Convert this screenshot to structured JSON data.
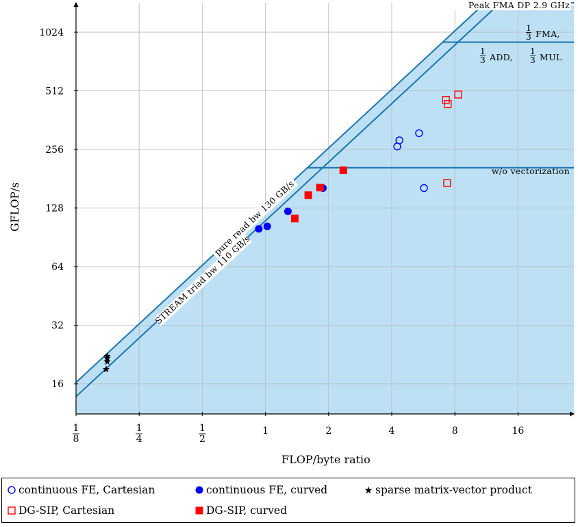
{
  "chart_data": {
    "type": "scatter",
    "xscale": "log2",
    "yscale": "log2",
    "xlim": [
      0.125,
      28
    ],
    "ylim": [
      12,
      1600
    ],
    "xlabel": "FLOP/byte ratio",
    "ylabel": "GFLOP/s",
    "x_ticks": [
      {
        "value": 0.125,
        "num": "1",
        "den": "8"
      },
      {
        "value": 0.25,
        "num": "1",
        "den": "4"
      },
      {
        "value": 0.5,
        "num": "1",
        "den": "2"
      },
      {
        "value": 1,
        "label": "1"
      },
      {
        "value": 2,
        "label": "2"
      },
      {
        "value": 4,
        "label": "4"
      },
      {
        "value": 8,
        "label": "8"
      },
      {
        "value": 16,
        "label": "16"
      }
    ],
    "y_ticks": [
      {
        "value": 16,
        "label": "16"
      },
      {
        "value": 32,
        "label": "32"
      },
      {
        "value": 64,
        "label": "64"
      },
      {
        "value": 128,
        "label": "128"
      },
      {
        "value": 256,
        "label": "256"
      },
      {
        "value": 512,
        "label": "512"
      },
      {
        "value": 1024,
        "label": "1024"
      }
    ],
    "grid": true,
    "roofline": {
      "peak_gflops": 1450,
      "fill_color": "#bde0f4",
      "line_color": "#1a74ad",
      "read_bw": 130,
      "triad_bw": 110,
      "ceil_third_fma": 910,
      "ceil_no_vector": 206,
      "labels": {
        "peak": "Peak FMA DP 2.9 GHz",
        "third_fma_frac": {
          "num": "1",
          "den": "3"
        },
        "third_fma_text": "FMA,",
        "add_mul_frac": {
          "num": "1",
          "den": "3"
        },
        "add_text": "ADD,",
        "mul_text": "MUL",
        "no_vector": "w/o vectorization",
        "read_bw": "pure read bw 130 GB/s",
        "triad_bw": "STREAM triad bw 110 GB/s"
      }
    },
    "series": [
      {
        "name": "continuous FE, Cartesian",
        "marker": "circle-open",
        "color": "#0000ff",
        "points": [
          [
            4.35,
            285
          ],
          [
            4.25,
            265
          ],
          [
            5.4,
            310
          ],
          [
            5.7,
            162
          ]
        ]
      },
      {
        "name": "continuous FE, curved",
        "marker": "circle-filled",
        "color": "#0000ff",
        "points": [
          [
            0.93,
            100
          ],
          [
            1.02,
            103
          ],
          [
            1.28,
            123
          ],
          [
            1.88,
            162
          ]
        ]
      },
      {
        "name": "sparse matrix-vector product",
        "marker": "star",
        "color": "#000000",
        "points": [
          [
            0.176,
            21.7
          ],
          [
            0.176,
            20.8
          ],
          [
            0.174,
            19.0
          ],
          [
            0.176,
            22.2
          ]
        ]
      },
      {
        "name": "DG-SIP, Cartesian",
        "marker": "square-open",
        "color": "#ff0000",
        "points": [
          [
            7.25,
            460
          ],
          [
            7.4,
            438
          ],
          [
            8.3,
            490
          ],
          [
            7.35,
            172
          ]
        ]
      },
      {
        "name": "DG-SIP, curved",
        "marker": "square-filled",
        "color": "#ff0000",
        "points": [
          [
            1.38,
            113
          ],
          [
            1.6,
            149
          ],
          [
            1.82,
            163
          ],
          [
            2.35,
            200
          ]
        ]
      }
    ]
  }
}
